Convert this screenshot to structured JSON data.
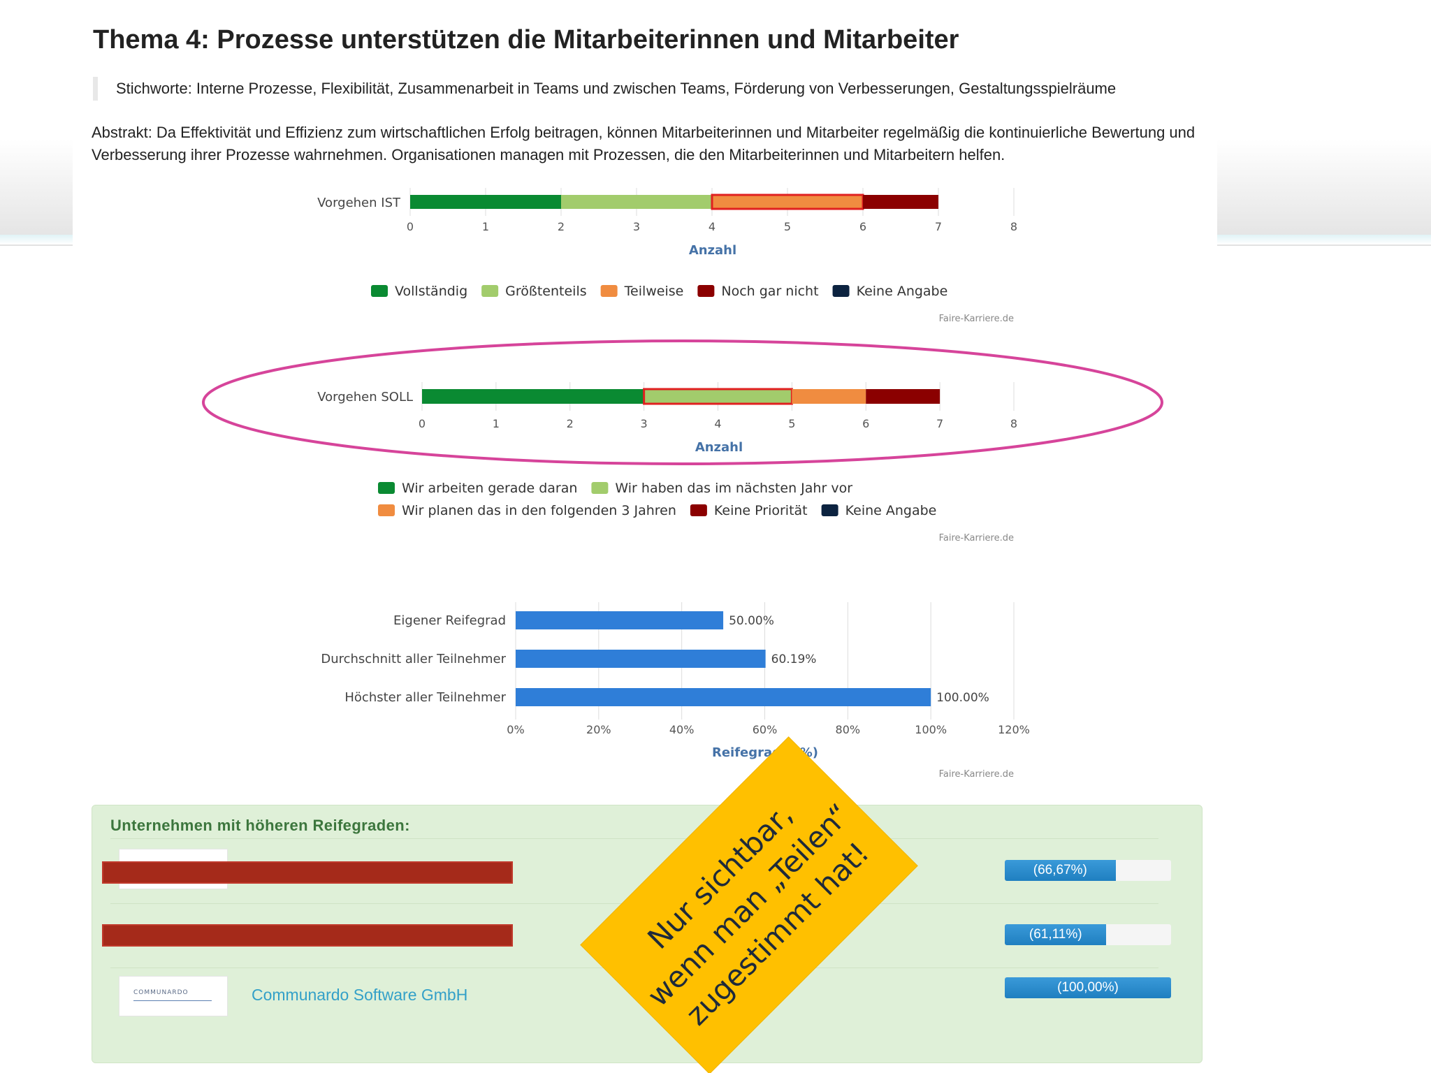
{
  "page": {
    "title": "Thema 4: Prozesse unterstützen die Mitarbeiterinnen und Mitarbeiter",
    "keywords": "Stichworte: Interne Prozesse, Flexibilität, Zusammenarbeit in Teams und zwischen Teams, Förderung von Verbesserungen, Gestaltungsspielräume",
    "abstract": "Abstrakt: Da Effektivität und Effizienz zum wirtschaftlichen Erfolg beitragen, können Mitarbeiterinnen und Mitarbeiter regelmäßig die kontinuierliche Bewertung und Verbesserung ihrer Prozesse wahrnehmen. Organisationen managen mit Prozessen, die den Mitarbeiterinnen und Mitarbeitern helfen."
  },
  "colors": {
    "dark_green": "#0a8a32",
    "light_green": "#a2cc6c",
    "orange": "#f08c40",
    "dark_red": "#8b0000",
    "navy": "#0c2340",
    "blue": "#2f7ed8",
    "highlight_red": "#e02020",
    "ellipse": "#d6449a"
  },
  "chart_data": [
    {
      "type": "bar",
      "orientation": "horizontal-stacked",
      "categories": [
        "Vorgehen IST"
      ],
      "series": [
        {
          "name": "Vollständig",
          "values": [
            2
          ],
          "color": "#0a8a32"
        },
        {
          "name": "Größtenteils",
          "values": [
            2
          ],
          "color": "#a2cc6c"
        },
        {
          "name": "Teilweise",
          "values": [
            2
          ],
          "color": "#f08c40",
          "highlighted": true
        },
        {
          "name": "Noch gar nicht",
          "values": [
            1
          ],
          "color": "#8b0000"
        },
        {
          "name": "Keine Angabe",
          "values": [
            0
          ],
          "color": "#0c2340"
        }
      ],
      "xlabel": "Anzahl",
      "xlim": [
        0,
        8
      ],
      "ticks": [
        "0",
        "1",
        "2",
        "3",
        "4",
        "5",
        "6",
        "7",
        "8"
      ],
      "credit": "Faire-Karriere.de",
      "legend": "bottom"
    },
    {
      "type": "bar",
      "orientation": "horizontal-stacked",
      "categories": [
        "Vorgehen SOLL"
      ],
      "series": [
        {
          "name": "Wir arbeiten gerade daran",
          "values": [
            3
          ],
          "color": "#0a8a32"
        },
        {
          "name": "Wir haben das im nächsten Jahr vor",
          "values": [
            2
          ],
          "color": "#a2cc6c",
          "highlighted": true
        },
        {
          "name": "Wir planen das in den folgenden 3 Jahren",
          "values": [
            1
          ],
          "color": "#f08c40"
        },
        {
          "name": "Keine Priorität",
          "values": [
            1
          ],
          "color": "#8b0000"
        },
        {
          "name": "Keine Angabe",
          "values": [
            0
          ],
          "color": "#0c2340"
        }
      ],
      "xlabel": "Anzahl",
      "xlim": [
        0,
        8
      ],
      "ticks": [
        "0",
        "1",
        "2",
        "3",
        "4",
        "5",
        "6",
        "7",
        "8"
      ],
      "credit": "Faire-Karriere.de",
      "legend": "bottom"
    },
    {
      "type": "bar",
      "orientation": "horizontal",
      "categories": [
        "Eigener Reifegrad",
        "Durchschnitt aller Teilnehmer",
        "Höchster aller Teilnehmer"
      ],
      "values": [
        50.0,
        60.19,
        100.0
      ],
      "data_labels": [
        "50.00%",
        "60.19%",
        "100.00%"
      ],
      "color": "#2f7ed8",
      "xlabel": "Reifegrade (%)",
      "xlim": [
        0,
        120
      ],
      "ticks": [
        "0%",
        "20%",
        "40%",
        "60%",
        "80%",
        "100%",
        "120%"
      ],
      "credit": "Faire-Karriere.de"
    }
  ],
  "companies": {
    "title": "Unternehmen mit höheren Reifegraden:",
    "items": [
      {
        "name": "",
        "percent": 66.67,
        "label": "(66,67%)",
        "redacted": true
      },
      {
        "name": "",
        "percent": 61.11,
        "label": "(61,11%)",
        "redacted": true
      },
      {
        "name": "Communardo Software GmbH",
        "percent": 100.0,
        "label": "(100,00%)",
        "redacted": false,
        "logo_text": "COMMUNARDO"
      }
    ]
  },
  "sticker": {
    "line1": "Nur sichtbar,",
    "line2": "wenn man „Teilen“",
    "line3": "zugestimmt hat!"
  }
}
